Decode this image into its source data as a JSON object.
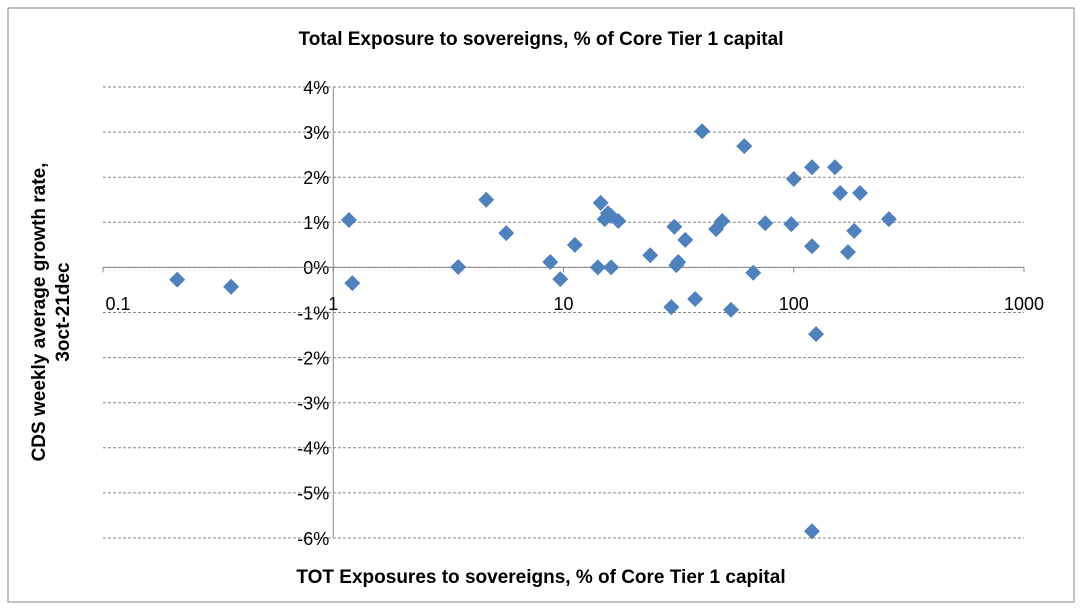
{
  "chart_data": {
    "type": "scatter",
    "title": "Total Exposure to sovereigns, % of Core Tier 1 capital",
    "xlabel": "TOT Exposures to sovereigns, % of Core Tier 1 capital",
    "ylabel": [
      "CDS weekly average growth rate,",
      "3oct-21dec"
    ],
    "x": [
      0.21,
      0.36,
      1.17,
      1.21,
      3.49,
      4.62,
      5.64,
      8.76,
      9.68,
      11.2,
      14.5,
      15.1,
      15.6,
      16.1,
      17.3,
      14.1,
      16.1,
      23.8,
      29.4,
      30.3,
      30.9,
      31.5,
      33.8,
      37.3,
      40.0,
      46.0,
      48.9,
      53.4,
      61.0,
      66.7,
      75.2,
      97.6,
      100,
      120,
      120,
      125,
      120,
      151,
      159,
      172,
      183,
      194,
      259
    ],
    "values": [
      -0.27,
      -0.43,
      1.05,
      -0.35,
      0.01,
      1.5,
      0.76,
      0.12,
      -0.26,
      0.5,
      1.43,
      1.07,
      1.2,
      1.14,
      1.03,
      0,
      0,
      0.27,
      -0.88,
      0.9,
      0.05,
      0.12,
      0.61,
      -0.7,
      3.02,
      0.85,
      1.03,
      -0.94,
      2.69,
      -0.12,
      0.98,
      0.96,
      1.96,
      2.22,
      0.47,
      -1.48,
      -5.85,
      2.22,
      1.65,
      0.34,
      0.81,
      1.65,
      1.07
    ],
    "color": "#4f81bd",
    "xscale": "log",
    "xlim": [
      0.1,
      1000
    ],
    "xticks": [
      0.1,
      1,
      10,
      100,
      1000
    ],
    "ylim": [
      -6,
      4
    ],
    "yticks": [
      {
        "value": -6,
        "label": "-6%"
      },
      {
        "value": -5,
        "label": "-5%"
      },
      {
        "value": -4,
        "label": "-4%"
      },
      {
        "value": -3,
        "label": "-3%"
      },
      {
        "value": -2,
        "label": "-2%"
      },
      {
        "value": -1,
        "label": "-1%"
      },
      {
        "value": 0,
        "label": "0%"
      },
      {
        "value": 1,
        "label": "1%"
      },
      {
        "value": 2,
        "label": "2%"
      },
      {
        "value": 3,
        "label": "3%"
      },
      {
        "value": 4,
        "label": "4%"
      }
    ],
    "grid": true
  }
}
